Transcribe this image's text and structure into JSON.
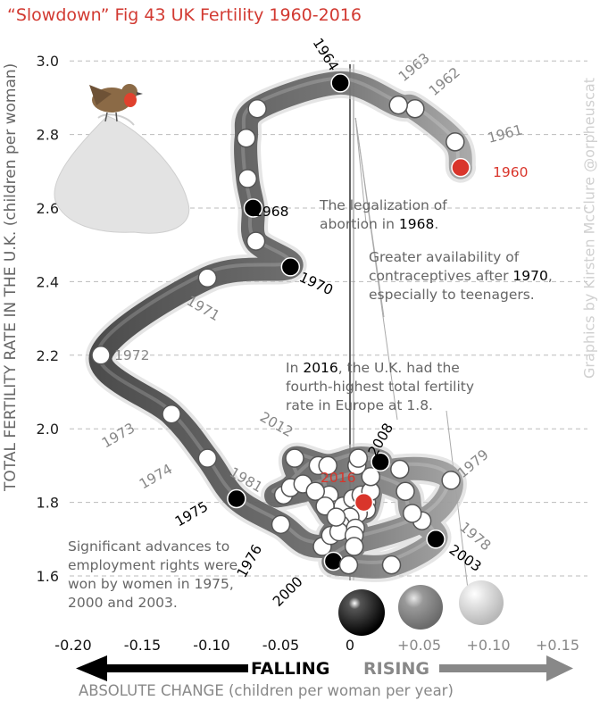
{
  "title": "“Slowdown” Fig 43 UK Fertility 1960-2016",
  "y_axis_label": "TOTAL FERTILITY RATE IN THE U.K. (children per woman)",
  "credit": "Graphics by Kirsten McClure @orpheuscat",
  "x_axis_label": "ABSOLUTE CHANGE (children per woman per year)",
  "falling_label": "FALLING",
  "rising_label": "RISING",
  "annotations": {
    "abortion": {
      "pre": "The legalization of abortion in ",
      "year": "1968",
      "post": "."
    },
    "contraceptives": {
      "pre": "Greater availability of contraceptives after ",
      "year": "1970",
      "post": ", especially to teenagers."
    },
    "europe": {
      "pre": "In ",
      "year": "2016",
      "post": ", the U.K. had the fourth-highest total fertility rate in Europe at 1.8."
    },
    "employment": "Significant advances to employment rights were won by women in 1975, 2000 and 2003."
  },
  "colors": {
    "accent": "#d9352b",
    "falling": "#000000",
    "rising": "#888888",
    "gridline": "#bbbbbb"
  },
  "chart_data": {
    "type": "scatter",
    "x_ticks": [
      "-0.20",
      "-0.15",
      "-0.10",
      "-0.05",
      "0",
      "+0.05",
      "+0.10",
      "+0.15"
    ],
    "y_ticks": [
      "1.6",
      "1.8",
      "2.0",
      "2.2",
      "2.4",
      "2.6",
      "2.8",
      "3.0"
    ],
    "xlim": [
      -0.22,
      0.155
    ],
    "ylim": [
      1.58,
      3.02
    ],
    "grid": "horizontal dashed",
    "points": [
      {
        "year": "1960",
        "x": 0.08,
        "y": 2.71,
        "label": true,
        "kind": "start"
      },
      {
        "year": "1961",
        "x": 0.076,
        "y": 2.78,
        "label": true,
        "kind": "plain"
      },
      {
        "year": "1962",
        "x": 0.047,
        "y": 2.87,
        "label": true,
        "kind": "plain"
      },
      {
        "year": "1963",
        "x": 0.035,
        "y": 2.88,
        "label": true,
        "kind": "plain"
      },
      {
        "year": "1964",
        "x": -0.007,
        "y": 2.94,
        "label": true,
        "kind": "event"
      },
      {
        "year": "1965",
        "x": -0.067,
        "y": 2.87,
        "label": false,
        "kind": "plain"
      },
      {
        "year": "1966",
        "x": -0.075,
        "y": 2.79,
        "label": false,
        "kind": "plain"
      },
      {
        "year": "1967",
        "x": -0.074,
        "y": 2.68,
        "label": false,
        "kind": "plain"
      },
      {
        "year": "1968",
        "x": -0.07,
        "y": 2.6,
        "label": true,
        "kind": "event"
      },
      {
        "year": "1969",
        "x": -0.068,
        "y": 2.51,
        "label": false,
        "kind": "plain"
      },
      {
        "year": "1970",
        "x": -0.043,
        "y": 2.44,
        "label": true,
        "kind": "event"
      },
      {
        "year": "1971",
        "x": -0.103,
        "y": 2.41,
        "label": true,
        "kind": "plain"
      },
      {
        "year": "1972",
        "x": -0.18,
        "y": 2.2,
        "label": true,
        "kind": "plain"
      },
      {
        "year": "1973",
        "x": -0.129,
        "y": 2.04,
        "label": true,
        "kind": "plain"
      },
      {
        "year": "1974",
        "x": -0.103,
        "y": 1.92,
        "label": true,
        "kind": "plain"
      },
      {
        "year": "1975",
        "x": -0.082,
        "y": 1.81,
        "label": true,
        "kind": "event"
      },
      {
        "year": "1976",
        "x": -0.05,
        "y": 1.74,
        "label": true,
        "kind": "plain"
      },
      {
        "year": "1977",
        "x": -0.02,
        "y": 1.68,
        "label": false,
        "kind": "plain"
      },
      {
        "year": "1978",
        "x": 0.052,
        "y": 1.75,
        "label": true,
        "kind": "plain"
      },
      {
        "year": "1979",
        "x": 0.073,
        "y": 1.86,
        "label": true,
        "kind": "plain"
      },
      {
        "year": "1980",
        "x": 0.036,
        "y": 1.89,
        "label": false,
        "kind": "plain"
      },
      {
        "year": "1981",
        "x": -0.048,
        "y": 1.82,
        "label": true,
        "kind": "plain"
      },
      {
        "year": "1982",
        "x": -0.043,
        "y": 1.84,
        "label": false,
        "kind": "plain"
      },
      {
        "year": "1983",
        "x": -0.023,
        "y": 1.9,
        "label": false,
        "kind": "plain"
      },
      {
        "year": "1984",
        "x": -0.015,
        "y": 1.82,
        "label": false,
        "kind": "plain"
      },
      {
        "year": "1985",
        "x": -0.01,
        "y": 1.78,
        "label": false,
        "kind": "plain"
      },
      {
        "year": "1986",
        "x": -0.005,
        "y": 1.79,
        "label": false,
        "kind": "plain"
      },
      {
        "year": "1987",
        "x": 0.002,
        "y": 1.81,
        "label": false,
        "kind": "plain"
      },
      {
        "year": "1988",
        "x": 0.008,
        "y": 1.82,
        "label": false,
        "kind": "plain"
      },
      {
        "year": "1989",
        "x": 0.012,
        "y": 1.8,
        "label": false,
        "kind": "plain"
      },
      {
        "year": "1990",
        "x": 0.015,
        "y": 1.83,
        "label": false,
        "kind": "plain"
      },
      {
        "year": "1991",
        "x": 0.012,
        "y": 1.78,
        "label": false,
        "kind": "plain"
      },
      {
        "year": "1992",
        "x": 0.006,
        "y": 1.77,
        "label": false,
        "kind": "plain"
      },
      {
        "year": "1993",
        "x": 0.0,
        "y": 1.76,
        "label": false,
        "kind": "plain"
      },
      {
        "year": "1994",
        "x": -0.007,
        "y": 1.74,
        "label": false,
        "kind": "plain"
      },
      {
        "year": "1995",
        "x": -0.014,
        "y": 1.71,
        "label": false,
        "kind": "plain"
      },
      {
        "year": "1996",
        "x": -0.008,
        "y": 1.72,
        "label": false,
        "kind": "plain"
      },
      {
        "year": "1997",
        "x": 0.004,
        "y": 1.73,
        "label": false,
        "kind": "plain"
      },
      {
        "year": "1998",
        "x": 0.003,
        "y": 1.71,
        "label": false,
        "kind": "plain"
      },
      {
        "year": "1999",
        "x": 0.003,
        "y": 1.68,
        "label": false,
        "kind": "plain"
      },
      {
        "year": "2000",
        "x": -0.012,
        "y": 1.64,
        "label": true,
        "kind": "event"
      },
      {
        "year": "2001",
        "x": -0.001,
        "y": 1.63,
        "label": false,
        "kind": "plain"
      },
      {
        "year": "2002",
        "x": 0.03,
        "y": 1.63,
        "label": false,
        "kind": "plain"
      },
      {
        "year": "2003",
        "x": 0.062,
        "y": 1.7,
        "label": true,
        "kind": "event"
      },
      {
        "year": "2004",
        "x": 0.045,
        "y": 1.77,
        "label": false,
        "kind": "plain"
      },
      {
        "year": "2005",
        "x": 0.04,
        "y": 1.83,
        "label": false,
        "kind": "plain"
      },
      {
        "year": "2006",
        "x": 0.015,
        "y": 1.87,
        "label": false,
        "kind": "plain"
      },
      {
        "year": "2007",
        "x": 0.005,
        "y": 1.9,
        "label": false,
        "kind": "plain"
      },
      {
        "year": "2008",
        "x": 0.022,
        "y": 1.91,
        "label": true,
        "kind": "event"
      },
      {
        "year": "2009",
        "x": 0.006,
        "y": 1.92,
        "label": false,
        "kind": "plain"
      },
      {
        "year": "2010",
        "x": -0.016,
        "y": 1.9,
        "label": false,
        "kind": "plain"
      },
      {
        "year": "2011",
        "x": -0.04,
        "y": 1.92,
        "label": false,
        "kind": "plain"
      },
      {
        "year": "2012",
        "x": -0.034,
        "y": 1.85,
        "label": true,
        "kind": "plain"
      },
      {
        "year": "2013",
        "x": -0.025,
        "y": 1.83,
        "label": false,
        "kind": "plain"
      },
      {
        "year": "2014",
        "x": -0.018,
        "y": 1.79,
        "label": false,
        "kind": "plain"
      },
      {
        "year": "2015",
        "x": -0.01,
        "y": 1.76,
        "label": false,
        "kind": "plain"
      },
      {
        "year": "2016",
        "x": 0.01,
        "y": 1.8,
        "label": true,
        "kind": "end"
      }
    ]
  }
}
